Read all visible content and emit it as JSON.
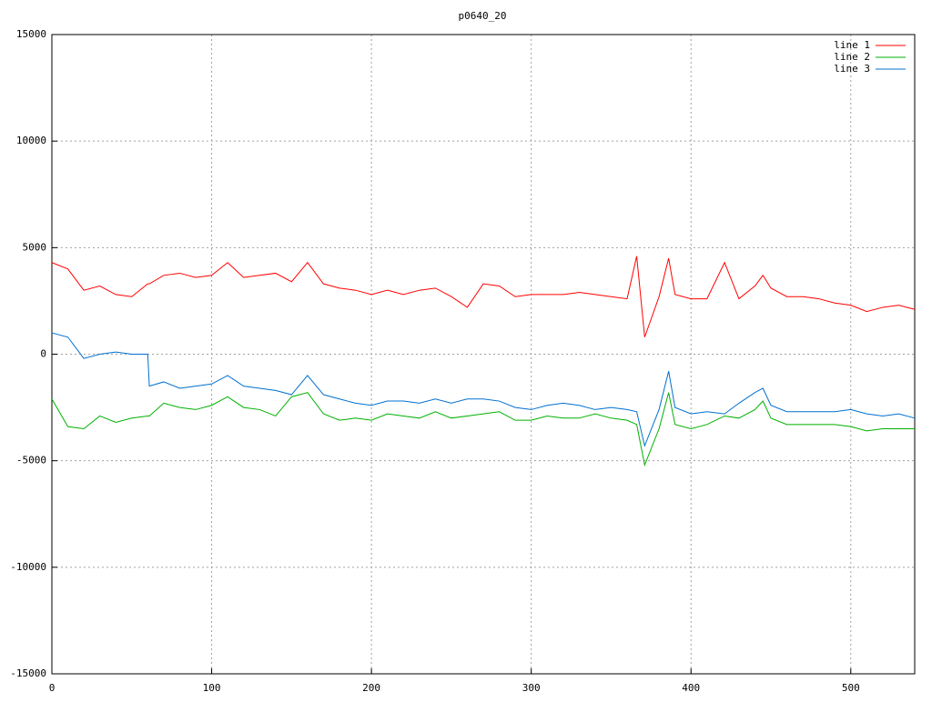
{
  "chart_data": {
    "type": "line",
    "title": "p0640_20",
    "x": [
      0,
      10,
      20,
      30,
      40,
      50,
      60,
      61,
      70,
      80,
      90,
      100,
      110,
      120,
      130,
      140,
      150,
      160,
      170,
      180,
      190,
      200,
      210,
      220,
      230,
      240,
      250,
      260,
      270,
      280,
      290,
      300,
      310,
      320,
      330,
      340,
      350,
      360,
      366,
      371,
      380,
      386,
      390,
      400,
      410,
      421,
      430,
      440,
      445,
      450,
      460,
      470,
      480,
      490,
      500,
      510,
      520,
      530,
      540
    ],
    "series": [
      {
        "name": "line 1",
        "color": "#ff0000",
        "values": [
          4300,
          4000,
          3000,
          3200,
          2800,
          2700,
          3300,
          3300,
          3700,
          3800,
          3600,
          3700,
          4300,
          3600,
          3700,
          3800,
          3400,
          4300,
          3300,
          3100,
          3000,
          2800,
          3000,
          2800,
          3000,
          3100,
          2700,
          2200,
          3300,
          3200,
          2700,
          2800,
          2800,
          2800,
          2900,
          2800,
          2700,
          2600,
          4600,
          800,
          2700,
          4500,
          2800,
          2600,
          2600,
          4300,
          2600,
          3200,
          3700,
          3100,
          2700,
          2700,
          2600,
          2400,
          2300,
          2000,
          2200,
          2300,
          2100
        ]
      },
      {
        "name": "line 2",
        "color": "#00b000",
        "values": [
          -2100,
          -3400,
          -3500,
          -2900,
          -3200,
          -3000,
          -2900,
          -2900,
          -2300,
          -2500,
          -2600,
          -2400,
          -2000,
          -2500,
          -2600,
          -2900,
          -2000,
          -1800,
          -2800,
          -3100,
          -3000,
          -3100,
          -2800,
          -2900,
          -3000,
          -2700,
          -3000,
          -2900,
          -2800,
          -2700,
          -3100,
          -3100,
          -2900,
          -3000,
          -3000,
          -2800,
          -3000,
          -3100,
          -3300,
          -5200,
          -3500,
          -1800,
          -3300,
          -3500,
          -3300,
          -2900,
          -3000,
          -2600,
          -2200,
          -3000,
          -3300,
          -3300,
          -3300,
          -3300,
          -3400,
          -3600,
          -3500,
          -3500,
          -3500
        ]
      },
      {
        "name": "line 3",
        "color": "#0070d0",
        "values": [
          1000,
          800,
          -200,
          0,
          100,
          0,
          0,
          -1500,
          -1300,
          -1600,
          -1500,
          -1400,
          -1000,
          -1500,
          -1600,
          -1700,
          -1900,
          -1000,
          -1900,
          -2100,
          -2300,
          -2400,
          -2200,
          -2200,
          -2300,
          -2100,
          -2300,
          -2100,
          -2100,
          -2200,
          -2500,
          -2600,
          -2400,
          -2300,
          -2400,
          -2600,
          -2500,
          -2600,
          -2700,
          -4300,
          -2600,
          -800,
          -2500,
          -2800,
          -2700,
          -2800,
          -2300,
          -1800,
          -1600,
          -2400,
          -2700,
          -2700,
          -2700,
          -2700,
          -2600,
          -2800,
          -2900,
          -2800,
          -3000
        ]
      }
    ],
    "xlim": [
      0,
      540
    ],
    "xticks": [
      0,
      100,
      200,
      300,
      400,
      500
    ],
    "ylim": [
      -15000,
      15000
    ],
    "yticks": [
      -15000,
      -10000,
      -5000,
      0,
      5000,
      10000,
      15000
    ],
    "grid": true,
    "legend": "top-right"
  }
}
